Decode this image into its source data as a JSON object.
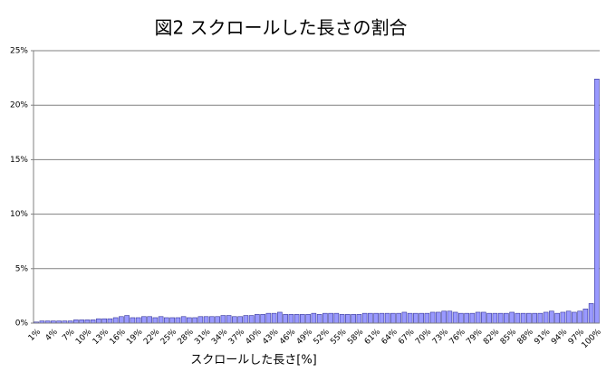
{
  "chart_data": {
    "type": "bar",
    "title": "図2 スクロールした長さの割合",
    "x_label": "スクロールした長さ[%]",
    "color": "#9999ff",
    "grid": true,
    "ylim": [
      0,
      25
    ],
    "yticks": [
      {
        "value": 0,
        "label": "0%"
      },
      {
        "value": 5,
        "label": "5%"
      },
      {
        "value": 10,
        "label": "10%"
      },
      {
        "value": 15,
        "label": "15%"
      },
      {
        "value": 20,
        "label": "20%"
      },
      {
        "value": 25,
        "label": "25%"
      }
    ],
    "categories": [
      "1%",
      null,
      null,
      "4%",
      null,
      null,
      "7%",
      null,
      null,
      "10%",
      null,
      null,
      "13%",
      null,
      null,
      "16%",
      null,
      null,
      "19%",
      null,
      null,
      "22%",
      null,
      null,
      "25%",
      null,
      null,
      "28%",
      null,
      null,
      "31%",
      null,
      null,
      "34%",
      null,
      null,
      "37%",
      null,
      null,
      "40%",
      null,
      null,
      "43%",
      null,
      null,
      "46%",
      null,
      null,
      "49%",
      null,
      null,
      "52%",
      null,
      null,
      "55%",
      null,
      null,
      "58%",
      null,
      null,
      "61%",
      null,
      null,
      "64%",
      null,
      null,
      "67%",
      null,
      null,
      "70%",
      null,
      null,
      "73%",
      null,
      null,
      "76%",
      null,
      null,
      "79%",
      null,
      null,
      "82%",
      null,
      null,
      "85%",
      null,
      null,
      "88%",
      null,
      null,
      "91%",
      null,
      null,
      "94%",
      null,
      null,
      "97%",
      null,
      null,
      "100%"
    ],
    "values": [
      0.1,
      0.2,
      0.2,
      0.2,
      0.2,
      0.2,
      0.2,
      0.3,
      0.3,
      0.3,
      0.3,
      0.4,
      0.4,
      0.4,
      0.5,
      0.6,
      0.7,
      0.5,
      0.5,
      0.6,
      0.6,
      0.5,
      0.6,
      0.5,
      0.5,
      0.5,
      0.6,
      0.5,
      0.5,
      0.6,
      0.6,
      0.6,
      0.6,
      0.7,
      0.7,
      0.6,
      0.6,
      0.7,
      0.7,
      0.8,
      0.8,
      0.9,
      0.9,
      1.0,
      0.8,
      0.8,
      0.8,
      0.8,
      0.8,
      0.9,
      0.8,
      0.9,
      0.9,
      0.9,
      0.8,
      0.8,
      0.8,
      0.8,
      0.9,
      0.9,
      0.9,
      0.9,
      0.9,
      0.9,
      0.9,
      1.0,
      0.9,
      0.9,
      0.9,
      0.9,
      1.0,
      1.0,
      1.1,
      1.1,
      1.0,
      0.9,
      0.9,
      0.9,
      1.0,
      1.0,
      0.9,
      0.9,
      0.9,
      0.9,
      1.0,
      0.9,
      0.9,
      0.9,
      0.9,
      0.9,
      1.0,
      1.1,
      0.9,
      1.0,
      1.1,
      1.0,
      1.1,
      1.3,
      1.8,
      22.4
    ]
  }
}
